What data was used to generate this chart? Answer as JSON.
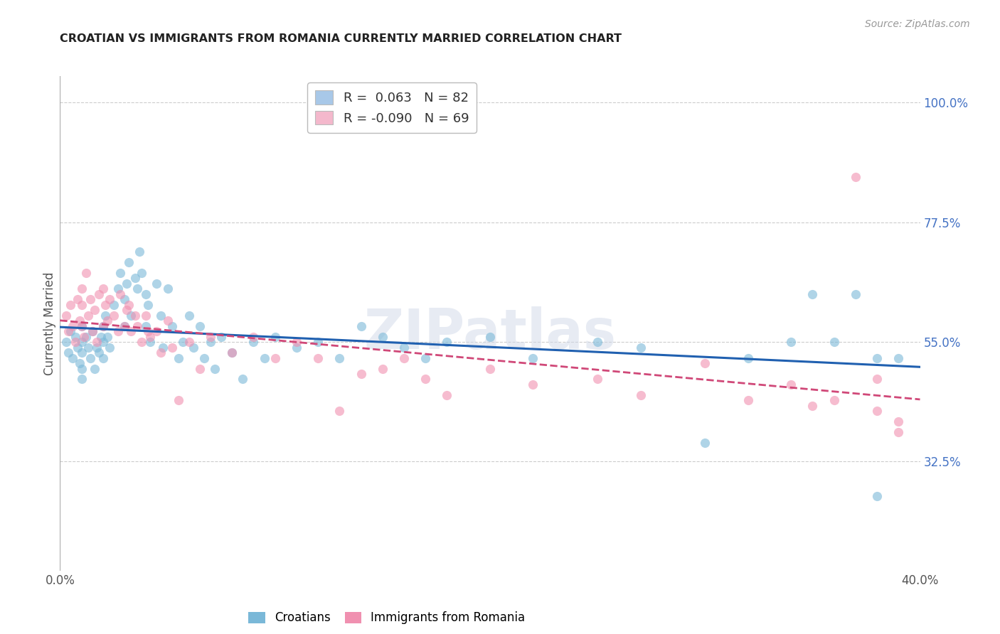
{
  "title": "CROATIAN VS IMMIGRANTS FROM ROMANIA CURRENTLY MARRIED CORRELATION CHART",
  "source": "Source: ZipAtlas.com",
  "ylabel": "Currently Married",
  "ylabel_right_labels": [
    "100.0%",
    "77.5%",
    "55.0%",
    "32.5%"
  ],
  "ylabel_right_values": [
    1.0,
    0.775,
    0.55,
    0.325
  ],
  "xlim": [
    0.0,
    0.4
  ],
  "ylim": [
    0.12,
    1.05
  ],
  "watermark": "ZIPatlas",
  "legend_r1": "R =  0.063",
  "legend_n1": "N = 82",
  "legend_r2": "R = -0.090",
  "legend_n2": "N = 69",
  "legend_color1": "#a8c8e8",
  "legend_color2": "#f4b8cc",
  "series1_color": "#7ab8d8",
  "series2_color": "#f090b0",
  "trendline1_color": "#2060b0",
  "trendline2_color": "#d04878",
  "grid_color": "#cccccc",
  "background_color": "#ffffff",
  "scatter_alpha": 0.6,
  "scatter_size": 90,
  "croatians_x": [
    0.003,
    0.004,
    0.005,
    0.006,
    0.007,
    0.008,
    0.009,
    0.01,
    0.01,
    0.01,
    0.01,
    0.01,
    0.012,
    0.013,
    0.014,
    0.015,
    0.016,
    0.017,
    0.018,
    0.019,
    0.02,
    0.02,
    0.02,
    0.021,
    0.022,
    0.023,
    0.025,
    0.027,
    0.028,
    0.03,
    0.03,
    0.031,
    0.032,
    0.033,
    0.035,
    0.036,
    0.037,
    0.038,
    0.04,
    0.04,
    0.041,
    0.042,
    0.045,
    0.047,
    0.048,
    0.05,
    0.052,
    0.055,
    0.057,
    0.06,
    0.062,
    0.065,
    0.067,
    0.07,
    0.072,
    0.075,
    0.08,
    0.085,
    0.09,
    0.095,
    0.1,
    0.11,
    0.12,
    0.13,
    0.14,
    0.15,
    0.16,
    0.17,
    0.18,
    0.2,
    0.22,
    0.25,
    0.27,
    0.3,
    0.32,
    0.34,
    0.35,
    0.36,
    0.37,
    0.38,
    0.38,
    0.39
  ],
  "croatians_y": [
    0.55,
    0.53,
    0.57,
    0.52,
    0.56,
    0.54,
    0.51,
    0.58,
    0.5,
    0.53,
    0.55,
    0.48,
    0.56,
    0.54,
    0.52,
    0.57,
    0.5,
    0.54,
    0.53,
    0.56,
    0.58,
    0.52,
    0.55,
    0.6,
    0.56,
    0.54,
    0.62,
    0.65,
    0.68,
    0.63,
    0.58,
    0.66,
    0.7,
    0.6,
    0.67,
    0.65,
    0.72,
    0.68,
    0.64,
    0.58,
    0.62,
    0.55,
    0.66,
    0.6,
    0.54,
    0.65,
    0.58,
    0.52,
    0.55,
    0.6,
    0.54,
    0.58,
    0.52,
    0.55,
    0.5,
    0.56,
    0.53,
    0.48,
    0.55,
    0.52,
    0.56,
    0.54,
    0.55,
    0.52,
    0.58,
    0.56,
    0.54,
    0.52,
    0.55,
    0.56,
    0.52,
    0.55,
    0.54,
    0.36,
    0.52,
    0.55,
    0.64,
    0.55,
    0.64,
    0.52,
    0.26,
    0.52
  ],
  "romania_x": [
    0.003,
    0.004,
    0.005,
    0.006,
    0.007,
    0.008,
    0.009,
    0.01,
    0.01,
    0.01,
    0.011,
    0.012,
    0.013,
    0.014,
    0.015,
    0.016,
    0.017,
    0.018,
    0.02,
    0.02,
    0.021,
    0.022,
    0.023,
    0.025,
    0.027,
    0.028,
    0.03,
    0.031,
    0.032,
    0.033,
    0.035,
    0.036,
    0.038,
    0.04,
    0.041,
    0.042,
    0.045,
    0.047,
    0.05,
    0.052,
    0.055,
    0.06,
    0.065,
    0.07,
    0.08,
    0.09,
    0.1,
    0.11,
    0.12,
    0.13,
    0.14,
    0.15,
    0.16,
    0.17,
    0.18,
    0.2,
    0.22,
    0.25,
    0.27,
    0.3,
    0.32,
    0.34,
    0.35,
    0.36,
    0.37,
    0.38,
    0.38,
    0.39,
    0.39
  ],
  "romania_y": [
    0.6,
    0.57,
    0.62,
    0.58,
    0.55,
    0.63,
    0.59,
    0.65,
    0.58,
    0.62,
    0.56,
    0.68,
    0.6,
    0.63,
    0.57,
    0.61,
    0.55,
    0.64,
    0.65,
    0.58,
    0.62,
    0.59,
    0.63,
    0.6,
    0.57,
    0.64,
    0.58,
    0.61,
    0.62,
    0.57,
    0.6,
    0.58,
    0.55,
    0.6,
    0.57,
    0.56,
    0.57,
    0.53,
    0.59,
    0.54,
    0.44,
    0.55,
    0.5,
    0.56,
    0.53,
    0.56,
    0.52,
    0.55,
    0.52,
    0.42,
    0.49,
    0.5,
    0.52,
    0.48,
    0.45,
    0.5,
    0.47,
    0.48,
    0.45,
    0.51,
    0.44,
    0.47,
    0.43,
    0.44,
    0.86,
    0.42,
    0.48,
    0.4,
    0.38
  ]
}
